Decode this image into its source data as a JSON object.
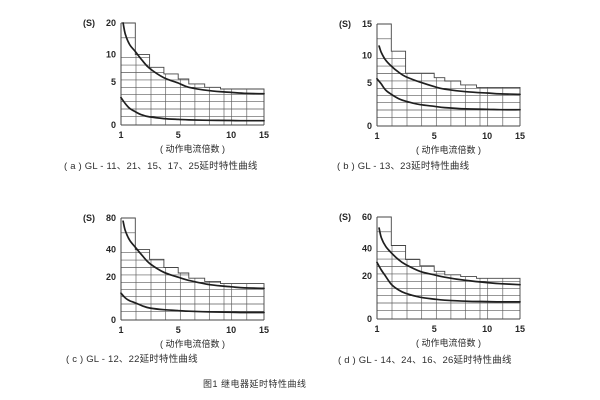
{
  "figure": {
    "caption": "图1  继电器延时特性曲线"
  },
  "colors": {
    "ink": "#262626",
    "curve": "#1f1f1f",
    "grid": "#5a5a5a",
    "band": "#454545",
    "background": "#ffffff"
  },
  "axis_label": "( 动作电流倍数 )",
  "y_unit": "(S)",
  "chart_data": [
    {
      "id": "a",
      "type": "line",
      "title": "( a ) GL - 11、21、15、17、25延时特性曲线",
      "xlabel": "( 动作电流倍数 )",
      "ylabel": "(S)",
      "x_ticks": [
        1,
        5,
        10,
        15
      ],
      "y_ticks": [
        0,
        5,
        10,
        20
      ],
      "xlim": [
        1,
        15
      ],
      "ylim": [
        0,
        20
      ],
      "grid": true,
      "series": [
        {
          "name": "upper-limit-curve",
          "x": [
            1.15,
            1.3,
            1.6,
            2,
            2.5,
            3,
            4,
            5,
            6,
            8,
            10,
            12,
            15
          ],
          "y": [
            20,
            16.5,
            13.2,
            11,
            8.9,
            7.5,
            5.8,
            4.9,
            4.4,
            4.0,
            3.8,
            3.7,
            3.65
          ]
        },
        {
          "name": "lower-limit-curve",
          "x": [
            1,
            1.3,
            1.6,
            2,
            2.5,
            3,
            4,
            5,
            6,
            8,
            10,
            12,
            15
          ],
          "y": [
            3.2,
            2.5,
            1.95,
            1.55,
            1.15,
            0.95,
            0.75,
            0.65,
            0.6,
            0.55,
            0.52,
            0.5,
            0.5
          ]
        }
      ],
      "step_band": {
        "x_edges": [
          1,
          2,
          3,
          4,
          5,
          6,
          7.5,
          9,
          15
        ],
        "tops": [
          20,
          10,
          7.7,
          6.5,
          5.6,
          4.8,
          4.4,
          4.2
        ]
      }
    },
    {
      "id": "b",
      "type": "line",
      "title": "( b ) GL - 13、23延时特性曲线",
      "xlabel": "( 动作电流倍数 )",
      "ylabel": "(S)",
      "x_ticks": [
        1,
        5,
        10,
        15
      ],
      "y_ticks": [
        0,
        5,
        10,
        15
      ],
      "xlim": [
        1,
        15
      ],
      "ylim": [
        0,
        15
      ],
      "grid": true,
      "series": [
        {
          "name": "upper-limit-curve",
          "x": [
            1.15,
            1.3,
            1.6,
            2,
            2.5,
            3,
            4,
            5,
            6,
            8,
            10,
            12,
            15
          ],
          "y": [
            11.5,
            10.5,
            9.2,
            8.1,
            7.0,
            6.2,
            5.2,
            4.6,
            4.3,
            4.0,
            3.85,
            3.75,
            3.7
          ]
        },
        {
          "name": "lower-limit-curve",
          "x": [
            1,
            1.3,
            1.6,
            2,
            2.5,
            3,
            4,
            5,
            6,
            8,
            10,
            12,
            15
          ],
          "y": [
            5.8,
            4.9,
            4.2,
            3.7,
            3.2,
            2.9,
            2.5,
            2.3,
            2.15,
            2.0,
            1.95,
            1.9,
            1.9
          ]
        }
      ],
      "step_band": {
        "x_edges": [
          1,
          2,
          3,
          4,
          5,
          6,
          7.5,
          9,
          15
        ],
        "tops": [
          15,
          10.7,
          6.8,
          6.8,
          6.0,
          5.4,
          4.8,
          4.5
        ]
      }
    },
    {
      "id": "c",
      "type": "line",
      "title": "( c ) GL - 12、22延时特性曲线",
      "xlabel": "( 动作电流倍数 )",
      "ylabel": "(S)",
      "x_ticks": [
        1,
        5,
        10,
        15
      ],
      "y_ticks": [
        0,
        20,
        40,
        80
      ],
      "xlim": [
        1,
        15
      ],
      "ylim": [
        0,
        80
      ],
      "grid": true,
      "series": [
        {
          "name": "upper-limit-curve",
          "x": [
            1.15,
            1.3,
            1.6,
            2,
            2.5,
            3,
            4,
            5,
            6,
            8,
            10,
            12,
            15
          ],
          "y": [
            76,
            64,
            52,
            43,
            35.5,
            30,
            23.5,
            20,
            18.5,
            16.5,
            15.5,
            15,
            14.8
          ]
        },
        {
          "name": "lower-limit-curve",
          "x": [
            1,
            1.3,
            1.6,
            2,
            2.5,
            3,
            4,
            5,
            6,
            8,
            10,
            12,
            15
          ],
          "y": [
            12.5,
            10.3,
            9.0,
            8.0,
            6.6,
            5.6,
            4.8,
            4.4,
            4.1,
            3.8,
            3.6,
            3.5,
            3.5
          ]
        }
      ],
      "step_band": {
        "x_edges": [
          1,
          2,
          3,
          4,
          5,
          6,
          7.5,
          9,
          15
        ],
        "tops": [
          80,
          40,
          33,
          27,
          23,
          19.5,
          18,
          17
        ]
      }
    },
    {
      "id": "d",
      "type": "line",
      "title": "( d ) GL - 14、24、16、26延时特性曲线",
      "xlabel": "( 动作电流倍数 )",
      "ylabel": "(S)",
      "x_ticks": [
        1,
        5,
        10,
        15
      ],
      "y_ticks": [
        0,
        20,
        40,
        60
      ],
      "xlim": [
        1,
        15
      ],
      "ylim": [
        0,
        60
      ],
      "grid": true,
      "series": [
        {
          "name": "upper-limit-curve",
          "x": [
            1.15,
            1.3,
            1.6,
            2,
            2.5,
            3,
            4,
            5,
            6,
            8,
            10,
            12,
            15
          ],
          "y": [
            53,
            47,
            41.5,
            37,
            32,
            28.5,
            23.5,
            21,
            19.5,
            18,
            17,
            16.5,
            16
          ]
        },
        {
          "name": "lower-limit-curve",
          "x": [
            1,
            1.3,
            1.6,
            2,
            2.5,
            3,
            4,
            5,
            6,
            8,
            10,
            12,
            15
          ],
          "y": [
            30,
            24.5,
            20,
            16.2,
            13.6,
            12,
            10.2,
            9.3,
            8.8,
            8.3,
            8.1,
            8,
            8
          ]
        }
      ],
      "step_band": {
        "x_edges": [
          1,
          2,
          3,
          4,
          5,
          6,
          7.5,
          9,
          15
        ],
        "tops": [
          60,
          42,
          32,
          27.5,
          23.5,
          21,
          19.8,
          19
        ]
      }
    }
  ]
}
